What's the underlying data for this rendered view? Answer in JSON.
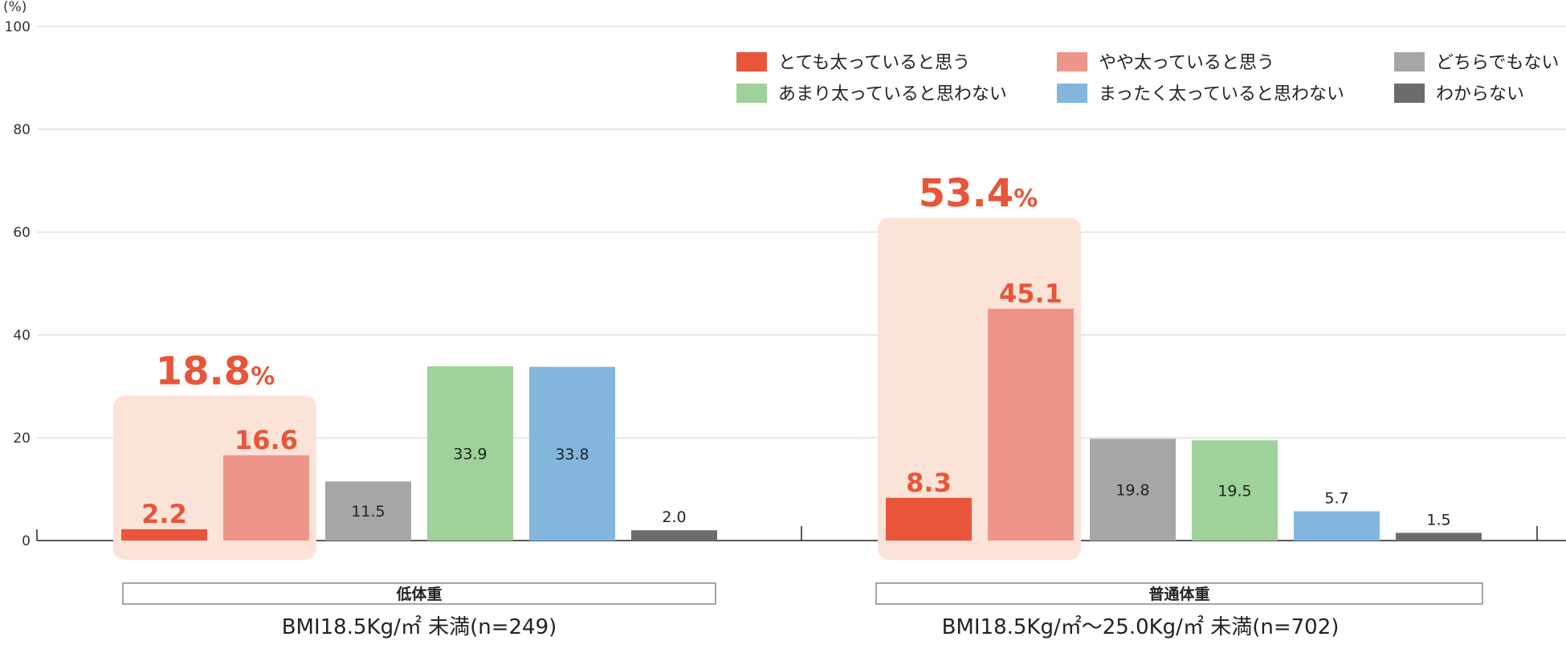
{
  "chart_data": {
    "type": "bar",
    "y_unit": "(%)",
    "ylim": [
      0,
      100
    ],
    "yticks": [
      0,
      20,
      40,
      60,
      80,
      100
    ],
    "grid": true,
    "legend_position": "top-right",
    "series": [
      {
        "name": "とても太っていると思う",
        "color": "#e8553a"
      },
      {
        "name": "やや太っていると思う",
        "color": "#ee958a"
      },
      {
        "name": "どちらでもない",
        "color": "#a7a5a5"
      },
      {
        "name": "あまり太っていると思わない",
        "color": "#9fd19a"
      },
      {
        "name": "まったく太っていると思わない",
        "color": "#82b6dd"
      },
      {
        "name": "わからない",
        "color": "#6c6c6c"
      }
    ],
    "groups": [
      {
        "title": "低体重",
        "subtitle": "BMI18.5Kg/㎡ 未満(n=249)",
        "values": [
          2.2,
          16.6,
          11.5,
          33.9,
          33.8,
          2.0
        ],
        "labels": [
          "2.2",
          "16.6",
          "11.5",
          "33.9",
          "33.8",
          "2.0"
        ],
        "highlight_total": "18.8",
        "highlight_unit": "%"
      },
      {
        "title": "普通体重",
        "subtitle": "BMI18.5Kg/㎡〜25.0Kg/㎡ 未満(n=702)",
        "values": [
          8.3,
          45.1,
          19.8,
          19.5,
          5.7,
          1.5
        ],
        "labels": [
          "8.3",
          "45.1",
          "19.8",
          "19.5",
          "5.7",
          "1.5"
        ],
        "highlight_total": "53.4",
        "highlight_unit": "%"
      }
    ]
  }
}
